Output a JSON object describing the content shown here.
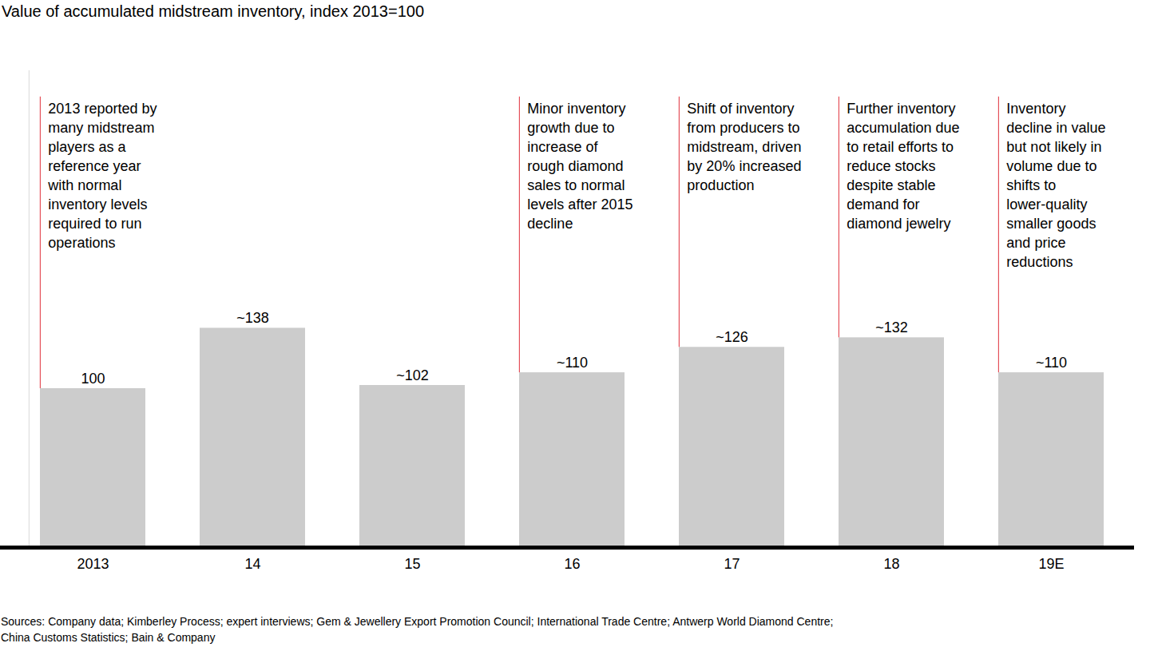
{
  "chart_data": {
    "type": "bar",
    "title": "Value of accumulated midstream inventory, index 2013=100",
    "categories": [
      "2013",
      "14",
      "15",
      "16",
      "17",
      "18",
      "19E"
    ],
    "values": [
      100,
      138,
      102,
      110,
      126,
      132,
      110
    ],
    "value_labels": [
      "100",
      "~138",
      "~102",
      "~110",
      "~126",
      "~132",
      "~110"
    ],
    "data_labels": true,
    "color": "#cccccc",
    "ylim": [
      0,
      300
    ],
    "yticks": [],
    "tick_labels": "x",
    "grid": false,
    "annotations": [
      {
        "category": "2013",
        "lines": [
          "2013 reported by",
          "many midstream",
          "players as a",
          "reference year",
          "with normal",
          "inventory levels",
          "required to run",
          "operations"
        ]
      },
      {
        "category": "16",
        "lines": [
          "Minor inventory",
          "growth due to",
          "increase of",
          "rough diamond",
          "sales to normal",
          "levels after 2015",
          "decline"
        ]
      },
      {
        "category": "17",
        "lines": [
          "Shift of inventory",
          "from producers to",
          "midstream, driven",
          "by 20% increased",
          "production"
        ]
      },
      {
        "category": "18",
        "lines": [
          "Further inventory",
          "accumulation due",
          "to retail efforts to",
          "reduce stocks",
          "despite stable",
          "demand for",
          "diamond jewelry"
        ]
      },
      {
        "category": "19E",
        "lines": [
          "Inventory",
          "decline in value",
          "but not likely in",
          "volume due to",
          "shifts to",
          "lower-quality",
          "smaller goods",
          "and price",
          "reductions"
        ]
      }
    ],
    "source": [
      "Sources: Company data; Kimberley Process; expert interviews; Gem & Jewellery Export Promotion Council; International Trade Centre; Antwerp World Diamond Centre;",
      "China Customs Statistics; Bain & Company"
    ]
  }
}
